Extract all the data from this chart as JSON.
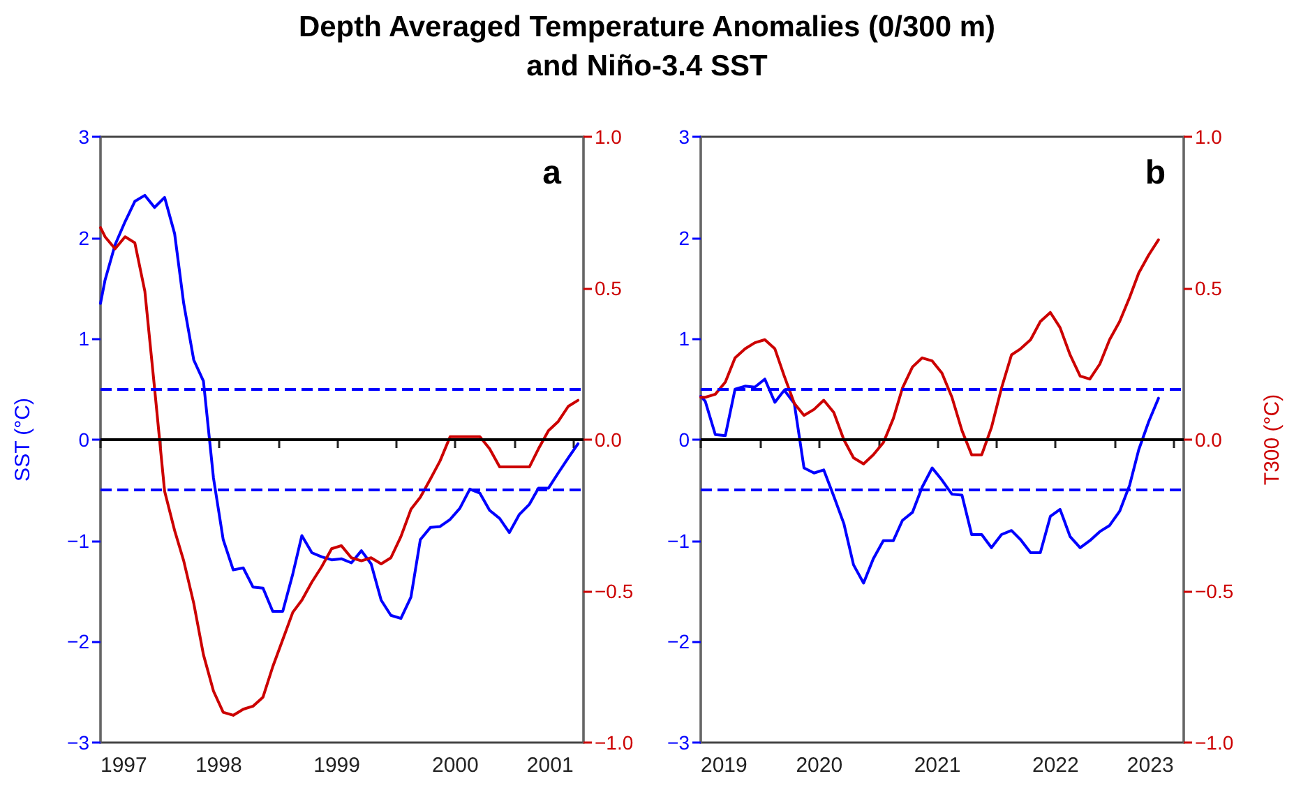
{
  "chart_data": [
    {
      "type": "line",
      "title": "Depth Averaged Temperature Anomalies (0/300 m)\nand Niño-3.4 SST",
      "ylabel": "SST (°C)",
      "annotations": [
        "a"
      ],
      "x": [
        "1997-07-01",
        "1997-07-15",
        "1997-08-15",
        "1997-09-15",
        "1997-10-15",
        "1997-11-15",
        "1997-12-15",
        "1998-01-15",
        "1998-02-15",
        "1998-03-15",
        "1998-04-15",
        "1998-05-15",
        "1998-06-15",
        "1998-07-15",
        "1998-08-15",
        "1998-09-15",
        "1998-10-15",
        "1998-11-15",
        "1998-12-15",
        "1999-01-15",
        "1999-02-15",
        "1999-03-15",
        "1999-04-15",
        "1999-05-15",
        "1999-06-15",
        "1999-07-15",
        "1999-08-15",
        "1999-09-15",
        "1999-10-15",
        "1999-11-15",
        "1999-12-15",
        "2000-01-15",
        "2000-02-15",
        "2000-03-15",
        "2000-04-15",
        "2000-05-15",
        "2000-06-15",
        "2000-07-15",
        "2000-08-15",
        "2000-09-15",
        "2000-10-15",
        "2000-11-15",
        "2000-12-15",
        "2001-01-15",
        "2001-02-15",
        "2001-03-15",
        "2001-04-15",
        "2001-05-15",
        "2001-06-15",
        "2001-07-15"
      ],
      "series": [
        {
          "color": "#0000ff",
          "axis": "y",
          "values": [
            1.35,
            1.58,
            1.93,
            2.16,
            2.36,
            2.42,
            2.3,
            2.4,
            2.04,
            1.35,
            0.79,
            0.58,
            -0.38,
            -0.99,
            -1.29,
            -1.27,
            -1.46,
            -1.47,
            -1.7,
            -1.7,
            -1.33,
            -0.95,
            -1.12,
            -1.16,
            -1.19,
            -1.18,
            -1.22,
            -1.1,
            -1.23,
            -1.59,
            -1.74,
            -1.77,
            -1.56,
            -0.99,
            -0.87,
            -0.86,
            -0.79,
            -0.68,
            -0.49,
            -0.53,
            -0.7,
            -0.78,
            -0.92,
            -0.74,
            -0.64,
            -0.48,
            -0.48,
            -0.33,
            -0.18,
            -0.04
          ]
        },
        {
          "color": "#cc0000",
          "axis": "y2",
          "values": [
            0.7,
            0.67,
            0.63,
            0.67,
            0.65,
            0.49,
            0.17,
            -0.17,
            -0.3,
            -0.4,
            -0.54,
            -0.71,
            -0.83,
            -0.9,
            -0.91,
            -0.89,
            -0.88,
            -0.85,
            -0.75,
            -0.66,
            -0.57,
            -0.53,
            -0.47,
            -0.42,
            -0.36,
            -0.35,
            -0.39,
            -0.4,
            -0.39,
            -0.41,
            -0.39,
            -0.32,
            -0.23,
            -0.19,
            -0.13,
            -0.07,
            0.01,
            0.01,
            0.01,
            0.01,
            -0.03,
            -0.09,
            -0.09,
            -0.09,
            -0.09,
            -0.03,
            0.03,
            0.06,
            0.11,
            0.13
          ]
        }
      ],
      "xlim": [
        "1997-07-01",
        "2001-08-01"
      ],
      "xticks": [
        {
          "value": "1997-07-01",
          "label": "1997"
        },
        {
          "value": "1998-01-01",
          "label": null
        },
        {
          "value": "1998-07-01",
          "label": "1998"
        },
        {
          "value": "1999-01-01",
          "label": null
        },
        {
          "value": "1999-07-01",
          "label": "1999"
        },
        {
          "value": "2000-01-01",
          "label": null
        },
        {
          "value": "2000-07-01",
          "label": "2000"
        },
        {
          "value": "2001-01-01",
          "label": null
        },
        {
          "value": "2001-07-01",
          "label": "2001"
        }
      ],
      "ylim": [
        -3,
        3
      ],
      "yticks": [
        {
          "value": -3,
          "label": "−3"
        },
        {
          "value": -2,
          "label": "−2"
        },
        {
          "value": -1,
          "label": "−1"
        },
        {
          "value": 0,
          "label": "0"
        },
        {
          "value": 1,
          "label": "1"
        },
        {
          "value": 2,
          "label": "2"
        },
        {
          "value": 3,
          "label": "3"
        }
      ],
      "y2lim": [
        -1,
        1
      ],
      "y2ticks": [
        {
          "value": -1,
          "label": "−1.0"
        },
        {
          "value": -0.5,
          "label": "−0.5"
        },
        {
          "value": 0,
          "label": "0.0"
        },
        {
          "value": 0.5,
          "label": "0.5"
        },
        {
          "value": 1,
          "label": "1.0"
        }
      ],
      "ref_lines": [
        {
          "axis": "y",
          "value": 0,
          "color": "#000000",
          "line_style": "solid"
        },
        {
          "axis": "y",
          "value": 0.5,
          "color": "#0000ff",
          "line_style": "dashed"
        },
        {
          "axis": "y",
          "value": -0.5,
          "color": "#0000ff",
          "line_style": "dashed"
        }
      ]
    },
    {
      "type": "line",
      "y2label": "T300 (°C)",
      "annotations": [
        "b"
      ],
      "x": [
        "2019-07-01",
        "2019-07-15",
        "2019-08-15",
        "2019-09-15",
        "2019-10-15",
        "2019-11-15",
        "2019-12-15",
        "2020-01-15",
        "2020-02-15",
        "2020-03-15",
        "2020-04-15",
        "2020-05-15",
        "2020-06-15",
        "2020-07-15",
        "2020-08-15",
        "2020-09-15",
        "2020-10-15",
        "2020-11-15",
        "2020-12-15",
        "2021-01-15",
        "2021-02-15",
        "2021-03-15",
        "2021-04-15",
        "2021-05-15",
        "2021-06-15",
        "2021-07-15",
        "2021-08-15",
        "2021-09-15",
        "2021-10-15",
        "2021-11-15",
        "2021-12-15",
        "2022-01-15",
        "2022-02-15",
        "2022-03-15",
        "2022-04-15",
        "2022-05-15",
        "2022-06-15",
        "2022-07-15",
        "2022-08-15",
        "2022-09-15",
        "2022-10-15",
        "2022-11-15",
        "2022-12-15",
        "2023-01-15",
        "2023-02-15",
        "2023-03-15",
        "2023-04-15",
        "2023-05-15"
      ],
      "series": [
        {
          "color": "#0000ff",
          "axis": "y",
          "values": [
            0.43,
            0.38,
            0.05,
            0.04,
            0.5,
            0.53,
            0.52,
            0.6,
            0.37,
            0.49,
            0.36,
            -0.28,
            -0.33,
            -0.3,
            -0.56,
            -0.83,
            -1.24,
            -1.42,
            -1.18,
            -1.0,
            -1.0,
            -0.8,
            -0.72,
            -0.47,
            -0.28,
            -0.4,
            -0.54,
            -0.55,
            -0.94,
            -0.94,
            -1.07,
            -0.94,
            -0.9,
            -0.99,
            -1.12,
            -1.12,
            -0.76,
            -0.69,
            -0.96,
            -1.07,
            -1.0,
            -0.91,
            -0.85,
            -0.71,
            -0.45,
            -0.1,
            0.18,
            0.41
          ]
        },
        {
          "color": "#cc0000",
          "axis": "y2",
          "values": [
            0.14,
            0.14,
            0.15,
            0.19,
            0.27,
            0.3,
            0.32,
            0.33,
            0.3,
            0.21,
            0.12,
            0.08,
            0.1,
            0.13,
            0.09,
            0.0,
            -0.06,
            -0.08,
            -0.05,
            -0.01,
            0.07,
            0.17,
            0.24,
            0.27,
            0.26,
            0.22,
            0.14,
            0.03,
            -0.05,
            -0.05,
            0.04,
            0.17,
            0.28,
            0.3,
            0.33,
            0.39,
            0.42,
            0.37,
            0.28,
            0.21,
            0.2,
            0.25,
            0.33,
            0.39,
            0.47,
            0.55,
            0.61,
            0.66
          ]
        }
      ],
      "xlim": [
        "2019-07-01",
        "2023-08-01"
      ],
      "xticks": [
        {
          "value": "2019-07-01",
          "label": "2019"
        },
        {
          "value": "2020-01-01",
          "label": null
        },
        {
          "value": "2020-07-01",
          "label": "2020"
        },
        {
          "value": "2021-01-01",
          "label": null
        },
        {
          "value": "2021-07-01",
          "label": "2021"
        },
        {
          "value": "2022-01-01",
          "label": null
        },
        {
          "value": "2022-07-01",
          "label": "2022"
        },
        {
          "value": "2023-01-01",
          "label": null
        },
        {
          "value": "2023-07-01",
          "label": "2023"
        }
      ],
      "ylim": [
        -3,
        3
      ],
      "yticks": [
        {
          "value": -3,
          "label": "−3"
        },
        {
          "value": -2,
          "label": "−2"
        },
        {
          "value": -1,
          "label": "−1"
        },
        {
          "value": 0,
          "label": "0"
        },
        {
          "value": 1,
          "label": "1"
        },
        {
          "value": 2,
          "label": "2"
        },
        {
          "value": 3,
          "label": "3"
        }
      ],
      "y2lim": [
        -1,
        1
      ],
      "y2ticks": [
        {
          "value": -1,
          "label": "−1.0"
        },
        {
          "value": -0.5,
          "label": "−0.5"
        },
        {
          "value": 0,
          "label": "0.0"
        },
        {
          "value": 0.5,
          "label": "0.5"
        },
        {
          "value": 1,
          "label": "1.0"
        }
      ],
      "ref_lines": [
        {
          "axis": "y",
          "value": 0,
          "color": "#000000",
          "line_style": "solid"
        },
        {
          "axis": "y",
          "value": 0.5,
          "color": "#0000ff",
          "line_style": "dashed"
        },
        {
          "axis": "y",
          "value": -0.5,
          "color": "#0000ff",
          "line_style": "dashed"
        }
      ]
    }
  ]
}
